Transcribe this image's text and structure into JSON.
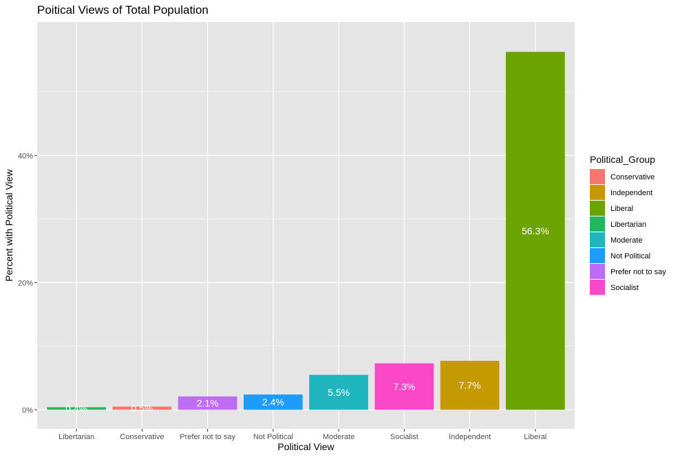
{
  "chart_data": {
    "type": "bar",
    "title": "Poitical Views of Total Population",
    "xlabel": "Political View",
    "ylabel": "Percent with Political View",
    "categories": [
      "Libertarian",
      "Conservative",
      "Prefer not to say",
      "Not Political",
      "Moderate",
      "Socialist",
      "Independent",
      "Liberal"
    ],
    "values": [
      0.4,
      0.5,
      2.1,
      2.4,
      5.5,
      7.3,
      7.7,
      56.3
    ],
    "labels": [
      "0.4%",
      "0.5%",
      "2.1%",
      "2.4%",
      "5.5%",
      "7.3%",
      "7.7%",
      "56.3%"
    ],
    "groups": [
      "Libertarian",
      "Conservative",
      "Prefer not to say",
      "Not Political",
      "Moderate",
      "Socialist",
      "Independent",
      "Liberal"
    ],
    "ylim": [
      -3,
      61
    ],
    "yticks": [
      0,
      20,
      40
    ],
    "ytick_labels": [
      "0%",
      "20%",
      "40%"
    ],
    "grid": true,
    "legend": {
      "title": "Political_Group",
      "placement": "right",
      "entries": [
        {
          "name": "Conservative",
          "color": "#F8766D"
        },
        {
          "name": "Independent",
          "color": "#C49A00"
        },
        {
          "name": "Liberal",
          "color": "#6BA300"
        },
        {
          "name": "Libertarian",
          "color": "#1FB85E"
        },
        {
          "name": "Moderate",
          "color": "#1DB6BE"
        },
        {
          "name": "Not Political",
          "color": "#1E9BFF"
        },
        {
          "name": "Prefer not to say",
          "color": "#BF6CF5"
        },
        {
          "name": "Socialist",
          "color": "#FB48C8"
        }
      ]
    },
    "colors": {
      "panel": "#E5E5E5",
      "grid": "#FFFFFF",
      "bar_label": "#FFFFFF",
      "text": "#000000",
      "tick_text": "#4D4D4D"
    }
  }
}
